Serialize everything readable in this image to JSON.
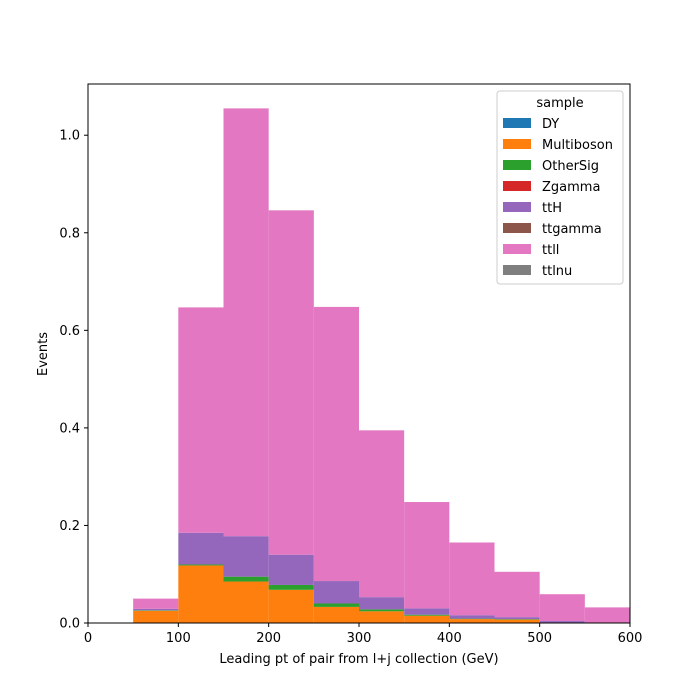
{
  "chart_data": {
    "type": "bar",
    "stacked": true,
    "histogram": true,
    "bin_edges": [
      50,
      100,
      150,
      200,
      250,
      300,
      350,
      400,
      450,
      500,
      550,
      600
    ],
    "xlabel": "Leading pt of pair from l+j collection (GeV)",
    "ylabel": "Events",
    "xlim": [
      0,
      600
    ],
    "ylim": [
      0,
      1.105
    ],
    "xticks": [
      0,
      100,
      200,
      300,
      400,
      500,
      600
    ],
    "yticks": [
      0.0,
      0.2,
      0.4,
      0.6,
      0.8,
      1.0
    ],
    "grid": false,
    "legend": {
      "title": "sample",
      "placement": "top-right"
    },
    "series": [
      {
        "name": "DY",
        "color": "#1f77b4",
        "values": [
          0,
          0,
          0,
          0,
          0,
          0,
          0,
          0,
          0,
          0,
          0
        ]
      },
      {
        "name": "Multiboson",
        "color": "#ff7f0e",
        "values": [
          0.025,
          0.118,
          0.085,
          0.068,
          0.033,
          0.024,
          0.015,
          0.008,
          0.007,
          0.001,
          0
        ]
      },
      {
        "name": "OtherSig",
        "color": "#2ca02c",
        "values": [
          0.001,
          0.002,
          0.01,
          0.01,
          0.007,
          0.004,
          0.002,
          0.001,
          0.001,
          0,
          0
        ]
      },
      {
        "name": "Zgamma",
        "color": "#d62728",
        "values": [
          0,
          0,
          0,
          0,
          0,
          0,
          0,
          0,
          0,
          0,
          0
        ]
      },
      {
        "name": "ttH",
        "color": "#9467bd",
        "values": [
          0.003,
          0.065,
          0.083,
          0.062,
          0.046,
          0.025,
          0.013,
          0.007,
          0.004,
          0.003,
          0.001
        ]
      },
      {
        "name": "ttgamma",
        "color": "#8c564b",
        "values": [
          0,
          0,
          0,
          0,
          0,
          0,
          0,
          0,
          0,
          0,
          0
        ]
      },
      {
        "name": "ttll",
        "color": "#e377c2",
        "values": [
          0.021,
          0.462,
          0.877,
          0.706,
          0.562,
          0.342,
          0.218,
          0.149,
          0.093,
          0.055,
          0.031
        ]
      },
      {
        "name": "ttlnu",
        "color": "#7f7f7f",
        "values": [
          0,
          0,
          0,
          0,
          0,
          0,
          0,
          0,
          0,
          0,
          0
        ]
      }
    ]
  }
}
